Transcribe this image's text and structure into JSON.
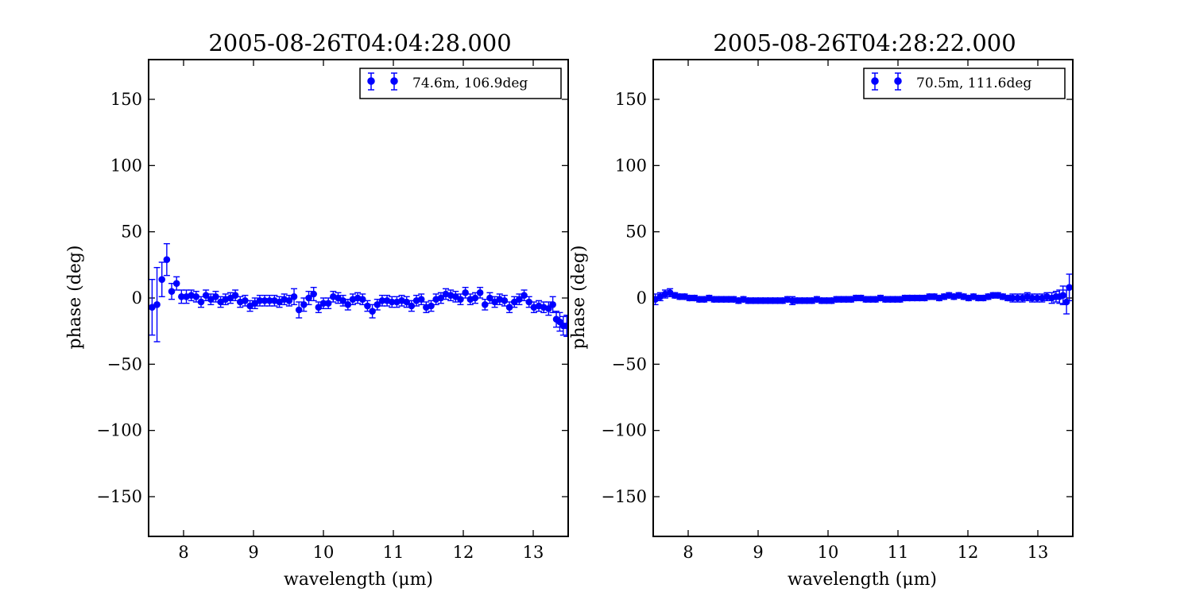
{
  "chart_data": [
    {
      "type": "scatter",
      "title": "2005-08-26T04:04:28.000",
      "xlabel": "wavelength (μm)",
      "ylabel": "phase (deg)",
      "xlim": [
        7.5,
        13.5
      ],
      "ylim": [
        -180,
        180
      ],
      "xticks": [
        8,
        9,
        10,
        11,
        12,
        13
      ],
      "yticks": [
        -150,
        -100,
        -50,
        0,
        50,
        100,
        150
      ],
      "grid": false,
      "legend_position": "top-right",
      "series": [
        {
          "name": "74.6m, 106.9deg",
          "color": "#0000ff",
          "x": [
            7.55,
            7.62,
            7.69,
            7.76,
            7.83,
            7.9,
            7.97,
            8.04,
            8.11,
            8.18,
            8.25,
            8.32,
            8.39,
            8.46,
            8.53,
            8.6,
            8.67,
            8.74,
            8.81,
            8.88,
            8.95,
            9.02,
            9.09,
            9.16,
            9.23,
            9.3,
            9.37,
            9.44,
            9.51,
            9.58,
            9.65,
            9.72,
            9.79,
            9.86,
            9.93,
            10.0,
            10.07,
            10.14,
            10.21,
            10.28,
            10.35,
            10.42,
            10.49,
            10.56,
            10.63,
            10.7,
            10.77,
            10.84,
            10.91,
            10.98,
            11.05,
            11.12,
            11.19,
            11.26,
            11.33,
            11.4,
            11.47,
            11.54,
            11.61,
            11.68,
            11.75,
            11.82,
            11.89,
            11.96,
            12.03,
            12.1,
            12.17,
            12.24,
            12.31,
            12.38,
            12.45,
            12.52,
            12.59,
            12.66,
            12.73,
            12.8,
            12.87,
            12.94,
            13.01,
            13.08,
            13.15,
            13.22,
            13.28,
            13.33,
            13.38,
            13.43,
            13.48
          ],
          "y": [
            -7,
            -5,
            14,
            29,
            5,
            11,
            1,
            1,
            2,
            1,
            -3,
            2,
            -1,
            1,
            -3,
            -1,
            0,
            2,
            -3,
            -2,
            -6,
            -4,
            -2,
            -2,
            -2,
            -2,
            -3,
            -1,
            -2,
            1,
            -9,
            -5,
            0,
            3,
            -7,
            -4,
            -4,
            1,
            0,
            -2,
            -5,
            -1,
            0,
            -1,
            -6,
            -10,
            -5,
            -2,
            -2,
            -3,
            -3,
            -2,
            -3,
            -6,
            -2,
            -1,
            -7,
            -6,
            -1,
            0,
            3,
            2,
            1,
            -1,
            4,
            -1,
            0,
            4,
            -5,
            0,
            -3,
            -1,
            -2,
            -7,
            -3,
            -1,
            2,
            -3,
            -7,
            -6,
            -7,
            -8,
            -5,
            -16,
            -18,
            -21,
            -21
          ],
          "err": [
            21,
            28,
            13,
            12,
            6,
            5,
            5,
            5,
            4,
            4,
            4,
            4,
            4,
            4,
            4,
            4,
            4,
            4,
            4,
            4,
            4,
            4,
            4,
            4,
            4,
            4,
            4,
            4,
            4,
            6,
            6,
            5,
            5,
            5,
            4,
            4,
            4,
            4,
            4,
            4,
            4,
            4,
            4,
            4,
            4,
            5,
            4,
            4,
            4,
            4,
            4,
            4,
            4,
            4,
            4,
            4,
            4,
            4,
            4,
            4,
            4,
            4,
            4,
            4,
            4,
            4,
            4,
            4,
            4,
            4,
            4,
            4,
            4,
            4,
            4,
            4,
            4,
            4,
            4,
            4,
            4,
            5,
            6,
            6,
            7,
            7,
            8
          ]
        }
      ]
    },
    {
      "type": "scatter",
      "title": "2005-08-26T04:28:22.000",
      "xlabel": "wavelength (μm)",
      "ylabel": "phase (deg)",
      "xlim": [
        7.5,
        13.5
      ],
      "ylim": [
        -180,
        180
      ],
      "xticks": [
        8,
        9,
        10,
        11,
        12,
        13
      ],
      "yticks": [
        -150,
        -100,
        -50,
        0,
        50,
        100,
        150
      ],
      "grid": false,
      "legend_position": "top-right",
      "series": [
        {
          "name": "70.5m, 111.6deg",
          "color": "#0000ff",
          "x": [
            7.53,
            7.6,
            7.67,
            7.74,
            7.81,
            7.88,
            7.95,
            8.02,
            8.09,
            8.16,
            8.23,
            8.3,
            8.37,
            8.44,
            8.51,
            8.58,
            8.65,
            8.72,
            8.79,
            8.86,
            8.93,
            9.0,
            9.07,
            9.14,
            9.21,
            9.28,
            9.35,
            9.42,
            9.49,
            9.56,
            9.63,
            9.7,
            9.77,
            9.84,
            9.91,
            9.98,
            10.05,
            10.12,
            10.19,
            10.26,
            10.33,
            10.4,
            10.47,
            10.54,
            10.61,
            10.68,
            10.75,
            10.82,
            10.89,
            10.96,
            11.03,
            11.1,
            11.17,
            11.24,
            11.31,
            11.38,
            11.45,
            11.52,
            11.59,
            11.66,
            11.73,
            11.8,
            11.87,
            11.94,
            12.01,
            12.08,
            12.15,
            12.22,
            12.29,
            12.36,
            12.43,
            12.5,
            12.57,
            12.64,
            12.71,
            12.78,
            12.85,
            12.92,
            12.99,
            13.06,
            13.13,
            13.2,
            13.26,
            13.31,
            13.36,
            13.41,
            13.45
          ],
          "y": [
            -1,
            1,
            3,
            4,
            2,
            1,
            1,
            0,
            0,
            -1,
            -1,
            0,
            -1,
            -1,
            -1,
            -1,
            -1,
            -2,
            -1,
            -2,
            -2,
            -2,
            -2,
            -2,
            -2,
            -2,
            -2,
            -1,
            -2,
            -2,
            -2,
            -2,
            -2,
            -1,
            -2,
            -2,
            -2,
            -1,
            -1,
            -1,
            -1,
            0,
            0,
            -1,
            -1,
            -1,
            0,
            -1,
            -1,
            -1,
            -1,
            0,
            0,
            0,
            0,
            0,
            1,
            1,
            0,
            1,
            2,
            1,
            2,
            1,
            0,
            1,
            0,
            0,
            1,
            2,
            2,
            1,
            0,
            0,
            0,
            0,
            1,
            0,
            0,
            0,
            1,
            0,
            1,
            1,
            2,
            -3,
            8
          ],
          "err": [
            4,
            3,
            3,
            3,
            2,
            2,
            2,
            2,
            2,
            2,
            2,
            2,
            2,
            2,
            2,
            2,
            2,
            2,
            2,
            2,
            2,
            2,
            2,
            2,
            2,
            2,
            2,
            2,
            3,
            2,
            2,
            2,
            2,
            2,
            2,
            2,
            2,
            2,
            2,
            2,
            2,
            2,
            2,
            2,
            2,
            2,
            2,
            2,
            2,
            2,
            2,
            2,
            2,
            2,
            2,
            2,
            2,
            2,
            2,
            2,
            2,
            2,
            2,
            2,
            2,
            2,
            2,
            2,
            2,
            2,
            2,
            2,
            2,
            3,
            3,
            3,
            3,
            3,
            3,
            3,
            3,
            4,
            4,
            5,
            7,
            9,
            10
          ]
        }
      ]
    }
  ]
}
